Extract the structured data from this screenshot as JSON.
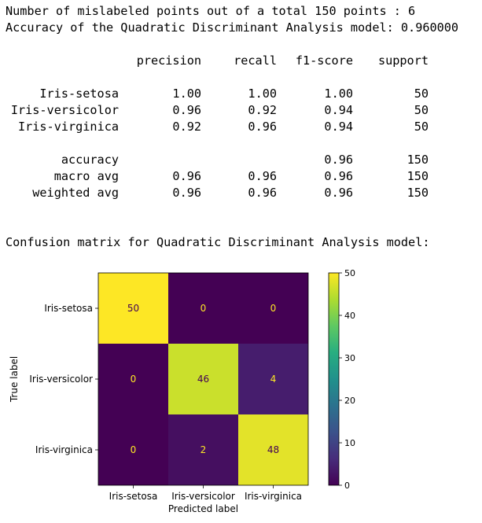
{
  "output": {
    "line1": "Number of mislabeled points out of a total 150 points : 6",
    "line2": "Accuracy of the Quadratic Discriminant Analysis model: 0.960000",
    "report": {
      "headers": [
        "precision",
        "recall",
        "f1-score",
        "support"
      ],
      "rows": [
        {
          "label": "Iris-setosa",
          "precision": "1.00",
          "recall": "1.00",
          "f1": "1.00",
          "support": "50"
        },
        {
          "label": "Iris-versicolor",
          "precision": "0.96",
          "recall": "0.92",
          "f1": "0.94",
          "support": "50"
        },
        {
          "label": "Iris-virginica",
          "precision": "0.92",
          "recall": "0.96",
          "f1": "0.94",
          "support": "50"
        }
      ],
      "accuracy": {
        "label": "accuracy",
        "f1": "0.96",
        "support": "150"
      },
      "macro": {
        "label": "macro avg",
        "precision": "0.96",
        "recall": "0.96",
        "f1": "0.96",
        "support": "150"
      },
      "weighted": {
        "label": "weighted avg",
        "precision": "0.96",
        "recall": "0.96",
        "f1": "0.96",
        "support": "150"
      }
    },
    "cm_heading": "Confusion matrix for Quadratic Discriminant Analysis model:"
  },
  "chart_data": {
    "type": "heatmap",
    "title": "",
    "xlabel": "Predicted label",
    "ylabel": "True label",
    "x_categories": [
      "Iris-setosa",
      "Iris-versicolor",
      "Iris-virginica"
    ],
    "y_categories": [
      "Iris-setosa",
      "Iris-versicolor",
      "Iris-virginica"
    ],
    "values": [
      [
        50,
        0,
        0
      ],
      [
        0,
        46,
        4
      ],
      [
        0,
        2,
        48
      ]
    ],
    "colormap": "viridis",
    "colorbar_range": [
      0,
      50
    ],
    "colorbar_ticks": [
      0,
      10,
      20,
      30,
      40,
      50
    ],
    "colors": {
      "low": "#440154",
      "high": "#fde725",
      "text_dark": "#440154",
      "text_light": "#fde725"
    }
  }
}
